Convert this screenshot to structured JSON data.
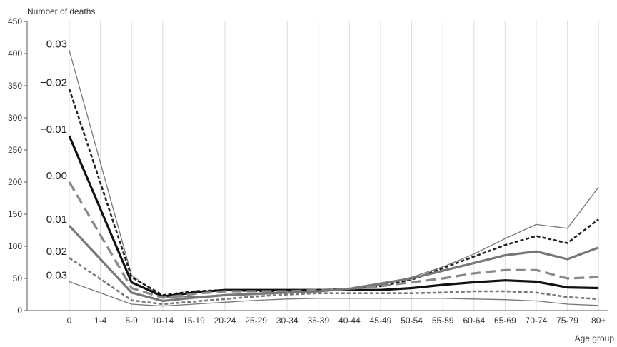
{
  "chart_data": {
    "type": "line",
    "ylabel": "Number of deaths",
    "xlabel": "Age group",
    "ylim": [
      0,
      450
    ],
    "yticks": [
      0,
      50,
      100,
      150,
      200,
      250,
      300,
      350,
      400,
      450
    ],
    "grid": "vertical",
    "categories": [
      "0",
      "1-4",
      "5-9",
      "10-14",
      "15-19",
      "20-24",
      "25-29",
      "30-34",
      "35-39",
      "40-44",
      "45-49",
      "50-54",
      "55-59",
      "60-64",
      "65-69",
      "70-74",
      "75-79",
      "80+"
    ],
    "series": [
      {
        "name": "−0.03",
        "color": "#777777",
        "stroke": "thin",
        "dash": "solid",
        "values": [
          405,
          null,
          55,
          20,
          22,
          24,
          26,
          28,
          30,
          34,
          40,
          52,
          68,
          88,
          112,
          134,
          128,
          192
        ]
      },
      {
        "name": "−0.02",
        "color": "#222222",
        "stroke": "medium",
        "dash": "short",
        "values": [
          345,
          null,
          52,
          24,
          30,
          32,
          30,
          30,
          32,
          34,
          38,
          48,
          66,
          84,
          102,
          116,
          105,
          142
        ]
      },
      {
        "name": "−0.01",
        "color": "#111111",
        "stroke": "thick",
        "dash": "solid",
        "values": [
          272,
          null,
          44,
          22,
          28,
          32,
          32,
          32,
          32,
          32,
          32,
          35,
          40,
          44,
          47,
          45,
          36,
          35
        ]
      },
      {
        "name": "0.00",
        "color": "#888888",
        "stroke": "thick",
        "dash": "long",
        "values": [
          200,
          null,
          35,
          20,
          26,
          30,
          30,
          30,
          32,
          34,
          38,
          44,
          50,
          58,
          63,
          63,
          50,
          52
        ]
      },
      {
        "name": "0.01",
        "color": "#777777",
        "stroke": "thick",
        "dash": "solid",
        "values": [
          132,
          null,
          28,
          15,
          20,
          24,
          26,
          28,
          30,
          34,
          42,
          50,
          62,
          74,
          86,
          92,
          80,
          98
        ]
      },
      {
        "name": "0.02",
        "color": "#777777",
        "stroke": "medium",
        "dash": "short",
        "values": [
          82,
          null,
          16,
          10,
          14,
          18,
          22,
          25,
          27,
          27,
          27,
          27,
          28,
          30,
          30,
          28,
          21,
          18
        ]
      },
      {
        "name": "0.03",
        "color": "#777777",
        "stroke": "thin",
        "dash": "solid",
        "values": [
          45,
          null,
          10,
          7,
          10,
          13,
          16,
          18,
          19,
          19,
          19,
          19,
          19,
          18,
          17,
          15,
          10,
          8
        ]
      }
    ]
  }
}
